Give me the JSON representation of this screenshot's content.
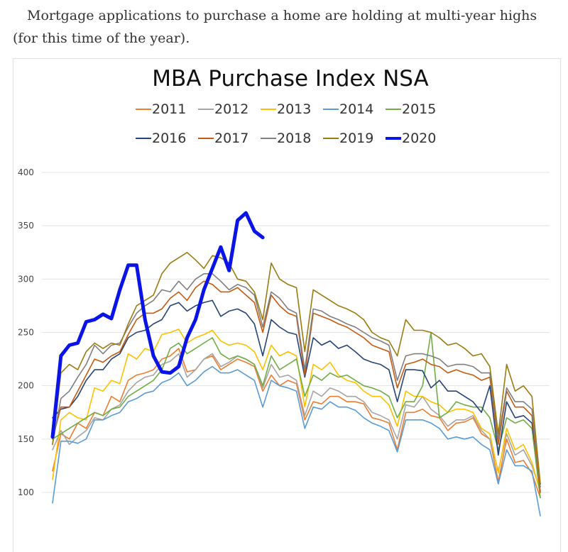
{
  "caption": "Mortgage applications to purchase a home are holding at multi-year highs (for this time of the year).",
  "chart_data": {
    "type": "line",
    "title": "MBA Purchase Index NSA",
    "xlabel": "",
    "ylabel": "",
    "ylim": [
      80,
      400
    ],
    "yticks": [
      100,
      150,
      200,
      250,
      300,
      350,
      400
    ],
    "grid": true,
    "legend_position": "top",
    "series": [
      {
        "name": "2011",
        "color": "#ED7D31",
        "width": 1.6,
        "values": [
          120,
          155,
          150,
          165,
          160,
          175,
          172,
          190,
          185,
          205,
          210,
          212,
          215,
          225,
          228,
          235,
          213,
          215,
          225,
          228,
          215,
          220,
          225,
          222,
          218,
          195,
          210,
          200,
          205,
          202,
          168,
          185,
          183,
          190,
          190,
          185,
          185,
          183,
          170,
          168,
          165,
          140,
          175,
          175,
          178,
          172,
          170,
          158,
          165,
          166,
          170,
          155,
          150,
          110,
          150,
          128,
          130,
          118,
          95
        ]
      },
      {
        "name": "2012",
        "color": "#A5A5A5",
        "width": 1.6,
        "values": [
          140,
          158,
          145,
          152,
          158,
          170,
          168,
          178,
          182,
          195,
          203,
          208,
          210,
          220,
          223,
          230,
          208,
          215,
          225,
          230,
          218,
          222,
          228,
          225,
          220,
          198,
          220,
          208,
          210,
          205,
          172,
          195,
          190,
          198,
          195,
          190,
          190,
          185,
          175,
          172,
          168,
          150,
          182,
          180,
          190,
          178,
          172,
          162,
          168,
          168,
          172,
          158,
          150,
          120,
          155,
          135,
          140,
          125,
          102
        ]
      },
      {
        "name": "2013",
        "color": "#FFC000",
        "width": 1.6,
        "values": [
          112,
          168,
          175,
          170,
          168,
          198,
          195,
          205,
          202,
          230,
          225,
          235,
          232,
          248,
          250,
          253,
          240,
          245,
          248,
          252,
          242,
          238,
          240,
          238,
          232,
          215,
          238,
          228,
          232,
          228,
          180,
          220,
          215,
          222,
          210,
          205,
          203,
          195,
          190,
          190,
          182,
          162,
          195,
          190,
          190,
          185,
          182,
          175,
          178,
          178,
          175,
          160,
          155,
          118,
          160,
          140,
          145,
          128,
          100
        ]
      },
      {
        "name": "2014",
        "color": "#5B9BD5",
        "width": 1.6,
        "values": [
          90,
          148,
          148,
          146,
          150,
          168,
          168,
          172,
          175,
          185,
          188,
          193,
          195,
          203,
          206,
          212,
          200,
          205,
          213,
          218,
          212,
          212,
          215,
          210,
          205,
          180,
          205,
          200,
          198,
          195,
          160,
          180,
          178,
          185,
          180,
          180,
          177,
          170,
          165,
          162,
          158,
          138,
          168,
          168,
          168,
          165,
          160,
          150,
          152,
          150,
          152,
          145,
          140,
          108,
          140,
          125,
          125,
          120,
          78
        ]
      },
      {
        "name": "2015",
        "color": "#70AD47",
        "width": 1.6,
        "values": [
          150,
          155,
          160,
          165,
          170,
          175,
          172,
          178,
          180,
          190,
          195,
          200,
          205,
          215,
          235,
          240,
          230,
          235,
          240,
          245,
          230,
          225,
          228,
          225,
          220,
          200,
          228,
          215,
          220,
          225,
          190,
          210,
          205,
          212,
          208,
          210,
          205,
          200,
          198,
          195,
          190,
          170,
          185,
          185,
          200,
          250,
          170,
          175,
          185,
          182,
          180,
          180,
          170,
          140,
          170,
          165,
          168,
          160,
          95
        ]
      },
      {
        "name": "2016",
        "color": "#264478",
        "width": 1.6,
        "values": [
          170,
          178,
          180,
          190,
          205,
          215,
          215,
          225,
          230,
          245,
          250,
          252,
          258,
          262,
          275,
          278,
          270,
          275,
          278,
          280,
          265,
          270,
          272,
          268,
          258,
          228,
          262,
          255,
          250,
          248,
          208,
          245,
          238,
          242,
          235,
          238,
          232,
          225,
          222,
          220,
          215,
          185,
          215,
          215,
          214,
          198,
          205,
          195,
          195,
          190,
          185,
          175,
          200,
          135,
          185,
          170,
          172,
          165,
          108
        ]
      },
      {
        "name": "2017",
        "color": "#C55A11",
        "width": 1.6,
        "values": [
          150,
          180,
          180,
          195,
          210,
          225,
          222,
          228,
          232,
          248,
          262,
          268,
          268,
          272,
          282,
          288,
          280,
          292,
          298,
          295,
          288,
          288,
          292,
          285,
          278,
          250,
          285,
          275,
          268,
          265,
          210,
          268,
          265,
          262,
          258,
          255,
          250,
          245,
          238,
          235,
          232,
          198,
          220,
          222,
          225,
          220,
          218,
          212,
          215,
          212,
          210,
          205,
          208,
          145,
          195,
          180,
          180,
          172,
          100
        ]
      },
      {
        "name": "2018",
        "color": "#7F7F7F",
        "width": 1.6,
        "values": [
          145,
          188,
          195,
          208,
          220,
          238,
          230,
          238,
          240,
          255,
          268,
          275,
          280,
          290,
          288,
          298,
          290,
          300,
          305,
          305,
          298,
          290,
          295,
          292,
          285,
          255,
          288,
          282,
          272,
          268,
          215,
          272,
          270,
          265,
          262,
          258,
          255,
          250,
          245,
          242,
          238,
          205,
          228,
          230,
          230,
          228,
          225,
          218,
          220,
          220,
          218,
          212,
          212,
          150,
          198,
          185,
          185,
          178,
          105
        ]
      },
      {
        "name": "2019",
        "color": "#9C7B0F",
        "width": 1.6,
        "values": [
          145,
          212,
          220,
          215,
          232,
          240,
          235,
          240,
          238,
          258,
          275,
          280,
          285,
          305,
          315,
          320,
          325,
          318,
          310,
          322,
          320,
          315,
          300,
          298,
          288,
          262,
          315,
          300,
          295,
          292,
          232,
          290,
          285,
          280,
          275,
          272,
          268,
          262,
          250,
          245,
          242,
          228,
          262,
          252,
          252,
          250,
          245,
          238,
          240,
          235,
          228,
          230,
          218,
          155,
          220,
          195,
          200,
          190,
          108
        ]
      },
      {
        "name": "2020",
        "color": "#0A14E6",
        "width": 5,
        "values": [
          152,
          228,
          238,
          240,
          260,
          262,
          267,
          263,
          290,
          313,
          313,
          262,
          228,
          213,
          212,
          218,
          245,
          262,
          290,
          310,
          330,
          308,
          355,
          362,
          345,
          339
        ]
      }
    ]
  }
}
